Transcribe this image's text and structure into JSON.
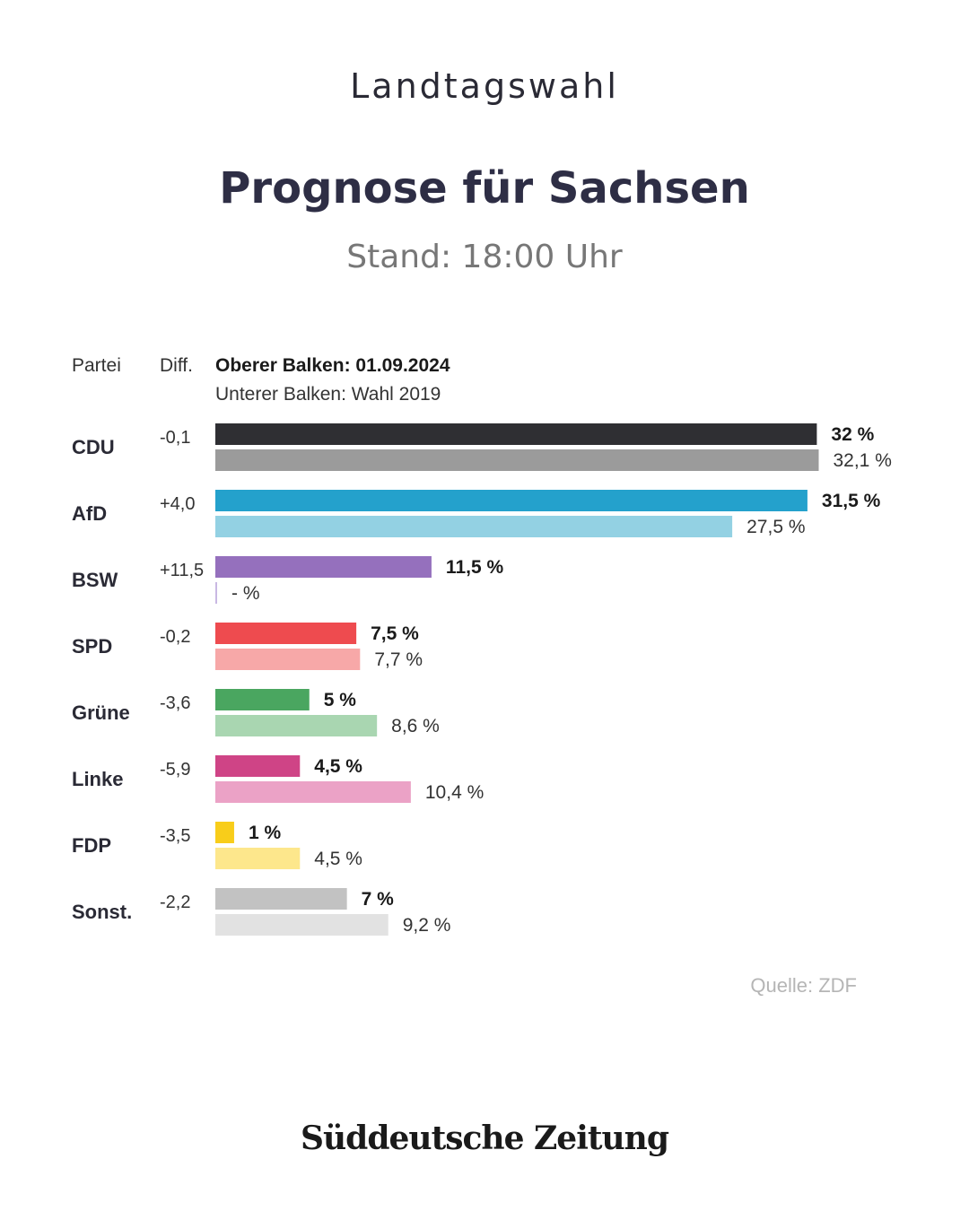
{
  "header": {
    "kicker": "Landtagswahl",
    "title": "Prognose für Sachsen",
    "stand": "Stand: 18:00 Uhr"
  },
  "legend": {
    "col_party": "Partei",
    "col_diff": "Diff.",
    "upper": "Oberer Balken: 01.09.2024",
    "lower": "Unterer Balken: Wahl 2019"
  },
  "chart_data": {
    "type": "bar",
    "orientation": "horizontal",
    "title": "Prognose für Sachsen",
    "categories": [
      "CDU",
      "AfD",
      "BSW",
      "SPD",
      "Grüne",
      "Linke",
      "FDP",
      "Sonst."
    ],
    "diff": [
      "-0,1",
      "+4,0",
      "+11,5",
      "-0,2",
      "-3,6",
      "-5,9",
      "-3,5",
      "-2,2"
    ],
    "series": [
      {
        "name": "Oberer Balken: 01.09.2024",
        "values": [
          32,
          31.5,
          11.5,
          7.5,
          5,
          4.5,
          1,
          7
        ],
        "labels": [
          "32 %",
          "31,5 %",
          "11,5 %",
          "7,5 %",
          "5 %",
          "4,5 %",
          "1 %",
          "7 %"
        ],
        "colors": [
          "#2f2f33",
          "#24a1cc",
          "#9570bd",
          "#ee4b4f",
          "#4aa660",
          "#cf4486",
          "#f8cd1a",
          "#c2c2c2"
        ]
      },
      {
        "name": "Unterer Balken: Wahl 2019",
        "values": [
          32.1,
          27.5,
          null,
          7.7,
          8.6,
          10.4,
          4.5,
          9.2
        ],
        "labels": [
          "32,1 %",
          "27,5 %",
          "- %",
          "7,7 %",
          "8,6 %",
          "10,4 %",
          "4,5 %",
          "9,2 %"
        ],
        "colors": [
          "#9b9b9b",
          "#93d1e3",
          "#c9b8e3",
          "#f7a8a8",
          "#a9d6b1",
          "#eba2c6",
          "#fde78c",
          "#e2e2e2"
        ]
      }
    ],
    "unit": "%",
    "grid": false,
    "legend_placement": "top"
  },
  "footer": {
    "source": "Quelle: ZDF",
    "logo": "Süddeutsche Zeitung"
  }
}
